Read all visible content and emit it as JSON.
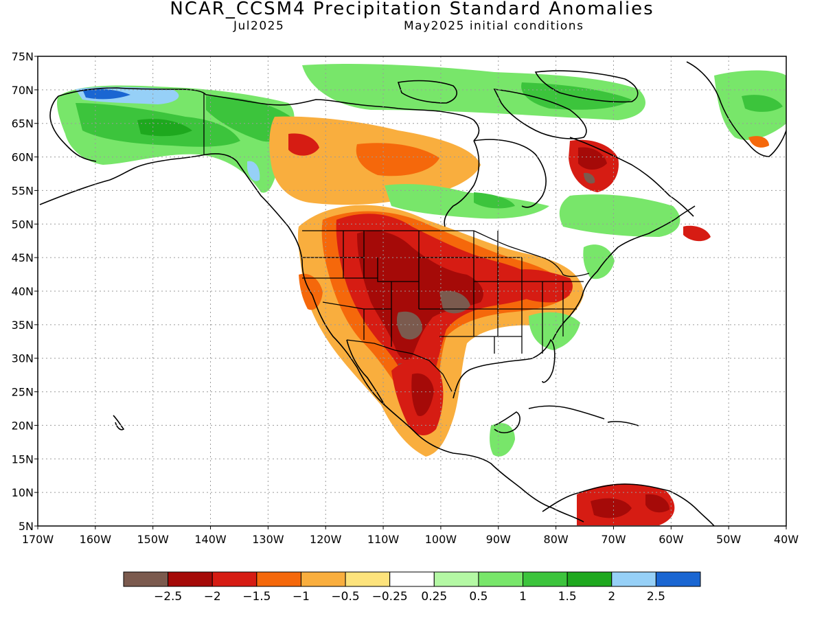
{
  "header": {
    "title": "NCAR_CCSM4 Precipitation Standard Anomalies",
    "valid_month": "Jul2025",
    "initial_conditions": "May2025 initial conditions"
  },
  "axes": {
    "lat_labels": [
      "75N",
      "70N",
      "65N",
      "60N",
      "55N",
      "50N",
      "45N",
      "40N",
      "35N",
      "30N",
      "25N",
      "20N",
      "15N",
      "10N",
      "5N"
    ],
    "lon_labels": [
      "170W",
      "160W",
      "150W",
      "140W",
      "130W",
      "120W",
      "110W",
      "100W",
      "90W",
      "80W",
      "70W",
      "60W",
      "50W",
      "40W"
    ]
  },
  "legend": {
    "colors": [
      "#7b5a4e",
      "#a50a08",
      "#d61c13",
      "#f5680b",
      "#f9ae3e",
      "#fde37c",
      "#ffffff",
      "#b4f8a4",
      "#78e66a",
      "#3cc43c",
      "#1ea81e",
      "#96d0f7",
      "#1a66d2"
    ],
    "labels": [
      "−2.5",
      "−2",
      "−1.5",
      "−1",
      "−0.5",
      "−0.25",
      "0.25",
      "0.5",
      "1",
      "1.5",
      "2",
      "2.5"
    ]
  },
  "colors": {
    "land_outline": "#000000",
    "grid": "#9a9a9a"
  }
}
